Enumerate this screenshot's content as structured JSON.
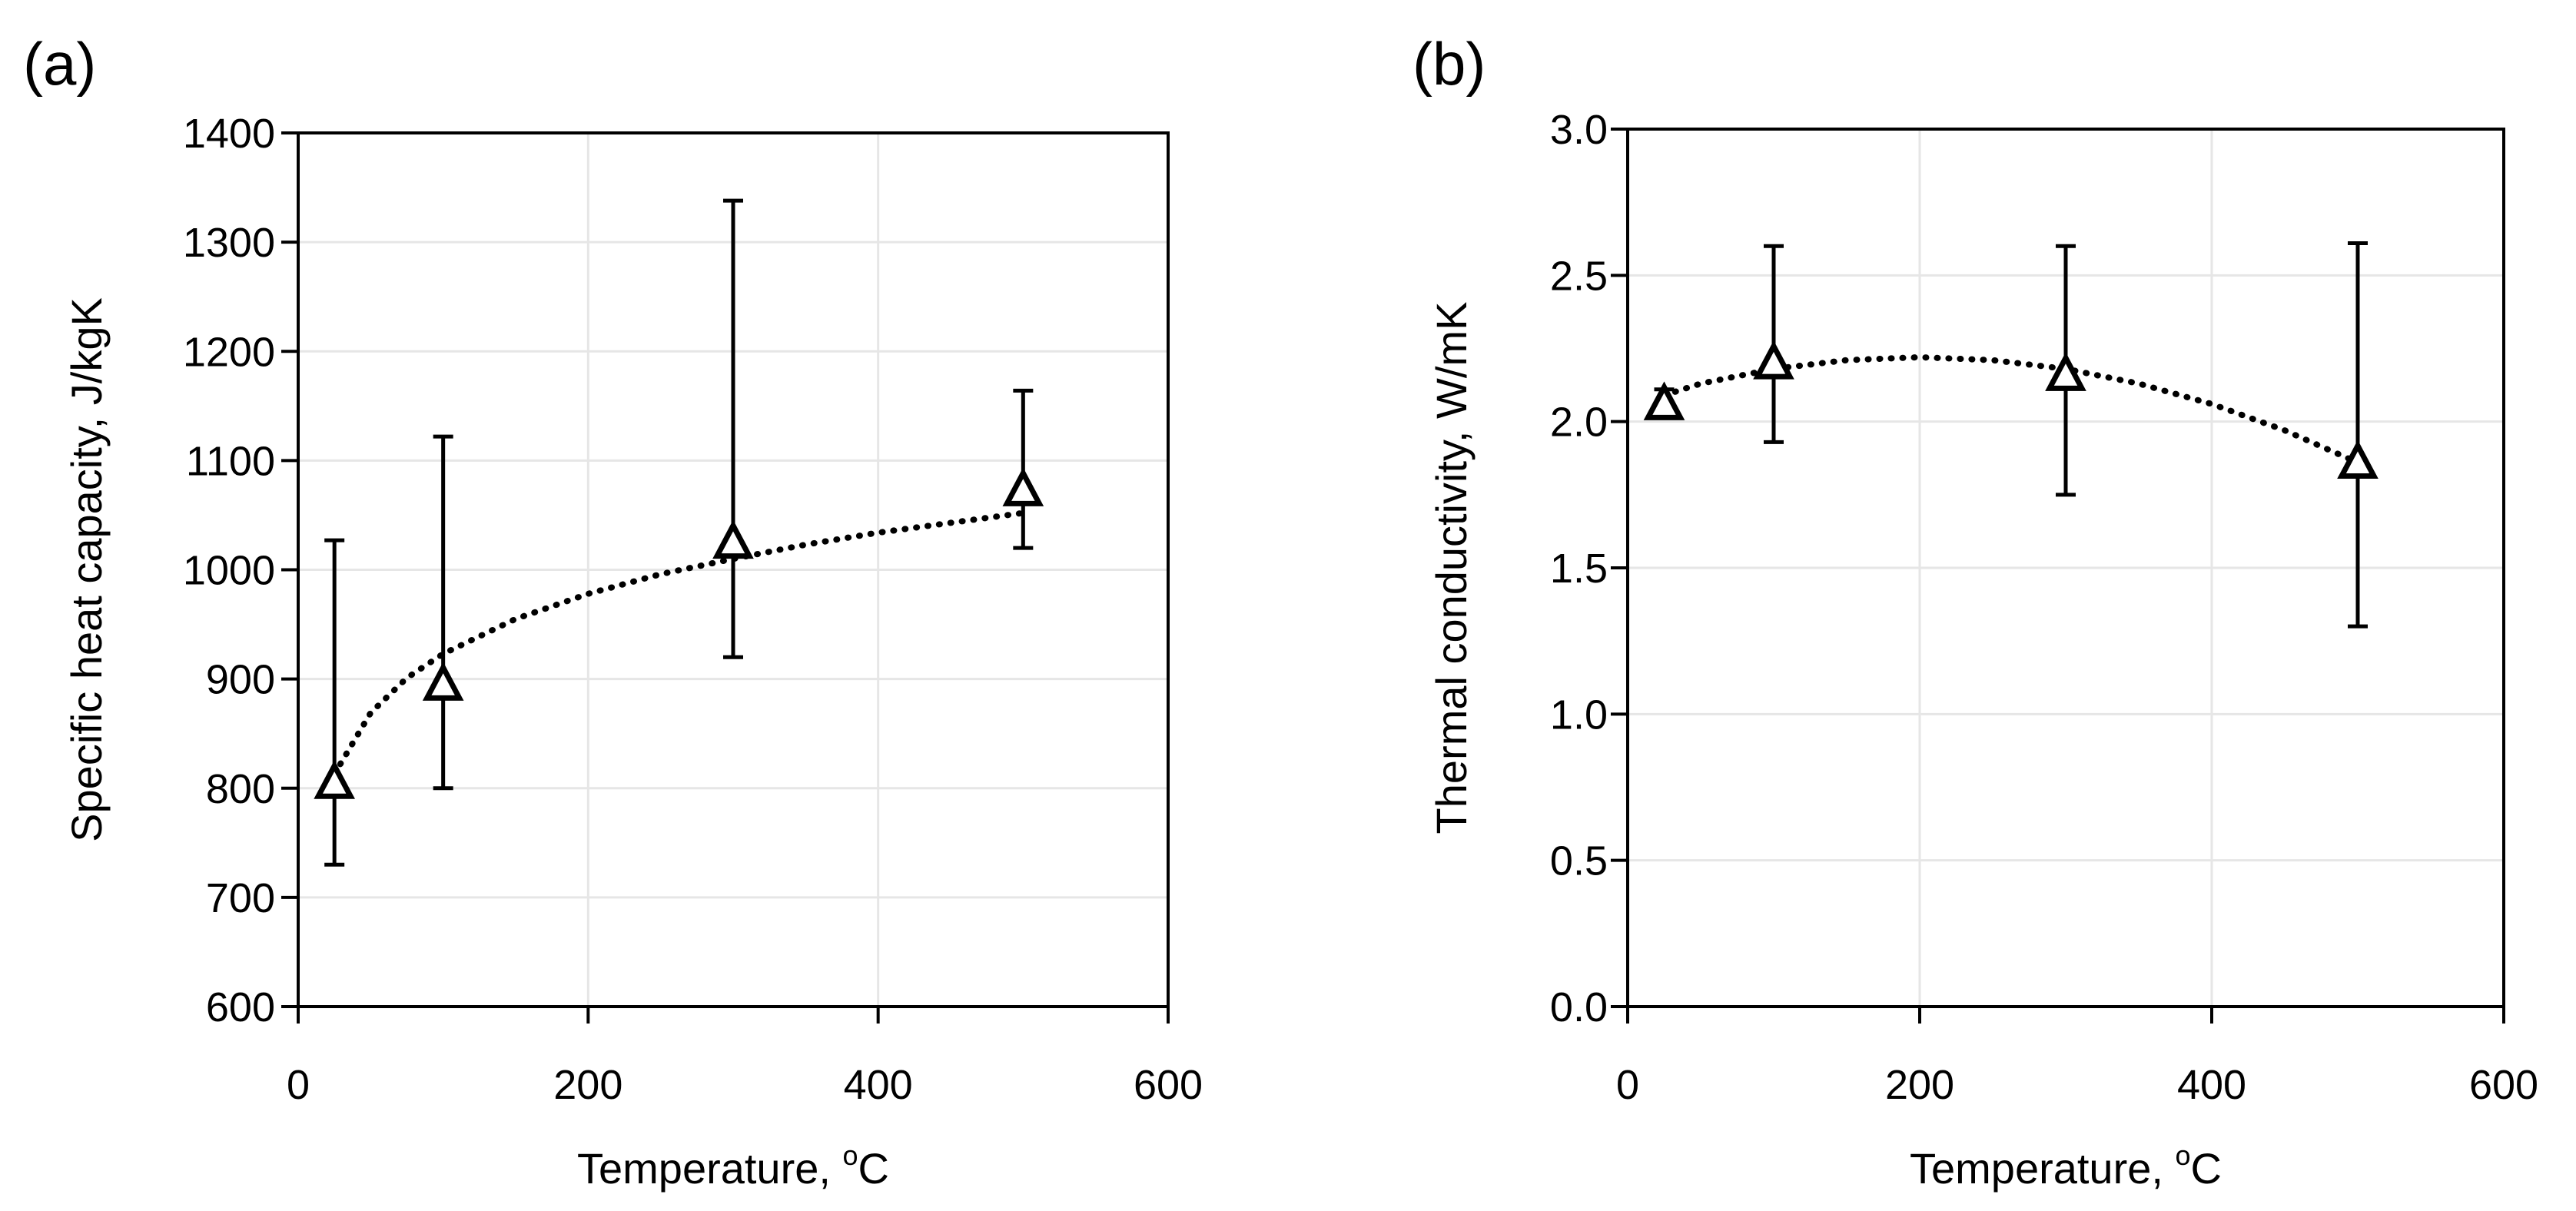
{
  "chart_data": [
    {
      "type": "scatter",
      "panel_label": "(a)",
      "title": "",
      "xlabel": "Temperature, ",
      "xlabel_super": "o",
      "xlabel_suffix": "C",
      "ylabel": "Specific heat capacity, J/kgK",
      "xlim": [
        0,
        600
      ],
      "ylim": [
        600,
        1400
      ],
      "xticks": [
        0,
        200,
        400,
        600
      ],
      "xtick_labels": [
        "0",
        "200",
        "400",
        "600"
      ],
      "yticks": [
        600,
        700,
        800,
        900,
        1000,
        1100,
        1200,
        1300,
        1400
      ],
      "ytick_labels": [
        "600",
        "700",
        "800",
        "900",
        "1000",
        "1100",
        "1200",
        "1300",
        "1400"
      ],
      "grid": true,
      "series": [
        {
          "name": "Specific heat capacity",
          "marker": "open-triangle",
          "x": [
            25,
            100,
            300,
            500
          ],
          "y": [
            805,
            895,
            1025,
            1073
          ],
          "err_low": [
            730,
            800,
            920,
            1020
          ],
          "err_high": [
            1027,
            1122,
            1338,
            1164
          ]
        }
      ],
      "trendline": {
        "type": "logarithmic",
        "style": "dotted",
        "x": [
          25,
          50,
          75,
          100,
          150,
          200,
          250,
          300,
          350,
          400,
          450,
          500
        ],
        "y": [
          813,
          869,
          901,
          923,
          955,
          978,
          996,
          1010,
          1023,
          1034,
          1043,
          1052
        ]
      }
    },
    {
      "type": "scatter",
      "panel_label": "(b)",
      "title": "",
      "xlabel": "Temperature, ",
      "xlabel_super": "o",
      "xlabel_suffix": "C",
      "ylabel": "Thermal conductivity, W/mK",
      "xlim": [
        0,
        600
      ],
      "ylim": [
        0,
        3
      ],
      "xticks": [
        0,
        200,
        400,
        600
      ],
      "xtick_labels": [
        "0",
        "200",
        "400",
        "600"
      ],
      "yticks": [
        0,
        0.5,
        1.0,
        1.5,
        2.0,
        2.5,
        3.0
      ],
      "ytick_labels": [
        "0.0",
        "0.5",
        "1.0",
        "1.5",
        "2.0",
        "2.5",
        "3.0"
      ],
      "grid": true,
      "series": [
        {
          "name": "Thermal conductivity",
          "marker": "open-triangle",
          "x": [
            25,
            100,
            300,
            500
          ],
          "y": [
            2.06,
            2.2,
            2.16,
            1.86
          ],
          "err_low": [
            2.02,
            1.93,
            1.75,
            1.3
          ],
          "err_high": [
            2.11,
            2.6,
            2.6,
            2.61
          ]
        }
      ],
      "trendline": {
        "type": "polynomial",
        "style": "dotted",
        "x": [
          25,
          50,
          100,
          150,
          200,
          250,
          300,
          350,
          400,
          450,
          500
        ],
        "y": [
          2.09,
          2.13,
          2.18,
          2.21,
          2.22,
          2.21,
          2.18,
          2.13,
          2.06,
          1.97,
          1.86
        ]
      }
    }
  ]
}
